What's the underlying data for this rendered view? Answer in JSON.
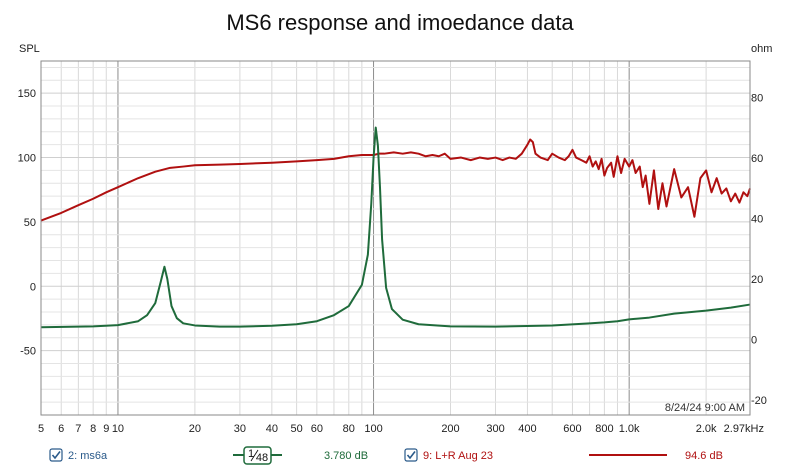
{
  "chart_data": {
    "type": "line",
    "title": "MS6 response and imoedance data",
    "left_axis_label": "SPL",
    "right_axis_label": "ohm",
    "timestamp": "8/24/24 9:00 AM",
    "x_scale": "log",
    "xlim": [
      5,
      2970
    ],
    "ylim_left": [
      -100,
      175
    ],
    "ylim_right": [
      -25,
      92
    ],
    "x_ticks": [
      {
        "v": 5,
        "label": "5"
      },
      {
        "v": 6,
        "label": "6"
      },
      {
        "v": 7,
        "label": "7"
      },
      {
        "v": 8,
        "label": "8"
      },
      {
        "v": 9,
        "label": "9"
      },
      {
        "v": 10,
        "label": "10"
      },
      {
        "v": 20,
        "label": "20"
      },
      {
        "v": 30,
        "label": "30"
      },
      {
        "v": 40,
        "label": "40"
      },
      {
        "v": 50,
        "label": "50"
      },
      {
        "v": 60,
        "label": "60"
      },
      {
        "v": 80,
        "label": "80"
      },
      {
        "v": 100,
        "label": "100"
      },
      {
        "v": 200,
        "label": "200"
      },
      {
        "v": 300,
        "label": "300"
      },
      {
        "v": 400,
        "label": "400"
      },
      {
        "v": 600,
        "label": "600"
      },
      {
        "v": 800,
        "label": "800"
      },
      {
        "v": 1000,
        "label": "1.0k"
      },
      {
        "v": 2000,
        "label": "2.0k"
      },
      {
        "v": 2970,
        "label": "2.97kHz"
      }
    ],
    "y_left_ticks": [
      150,
      100,
      50,
      0,
      -50
    ],
    "y_right_ticks": [
      80,
      60,
      40,
      20,
      0,
      -20
    ],
    "grid": true,
    "series": [
      {
        "name": "9: L+R Aug 23",
        "axis": "left",
        "color": "#b01010",
        "x": [
          5,
          6,
          7,
          8,
          9,
          10,
          12,
          14,
          16,
          18,
          20,
          25,
          30,
          40,
          50,
          60,
          70,
          80,
          90,
          100,
          105,
          110,
          120,
          130,
          140,
          150,
          160,
          170,
          180,
          190,
          200,
          220,
          240,
          260,
          280,
          300,
          320,
          340,
          360,
          380,
          400,
          410,
          420,
          430,
          450,
          480,
          500,
          530,
          560,
          580,
          600,
          620,
          650,
          680,
          700,
          720,
          740,
          760,
          780,
          800,
          820,
          850,
          870,
          900,
          930,
          960,
          1000,
          1030,
          1060,
          1100,
          1130,
          1160,
          1200,
          1250,
          1300,
          1350,
          1400,
          1500,
          1600,
          1700,
          1800,
          1900,
          2000,
          2100,
          2200,
          2300,
          2400,
          2500,
          2600,
          2700,
          2800,
          2900,
          2970
        ],
        "values": [
          51,
          57,
          63,
          68,
          73,
          77,
          84,
          89,
          92,
          93,
          94,
          94.5,
          95,
          96,
          97,
          98,
          99,
          101,
          102,
          102,
          103,
          103,
          104,
          103,
          104,
          103,
          101,
          102,
          101,
          103,
          99,
          100,
          98,
          100,
          99,
          100,
          98,
          100,
          99,
          103,
          110,
          114,
          112,
          103,
          100,
          98,
          103,
          100,
          98,
          101,
          106,
          100,
          98,
          96,
          101,
          93,
          97,
          91,
          99,
          86,
          92,
          96,
          85,
          101,
          88,
          99,
          93,
          98,
          88,
          93,
          77,
          86,
          64,
          90,
          60,
          80,
          62,
          91,
          69,
          77,
          54,
          84,
          90,
          73,
          84,
          72,
          76,
          66,
          72,
          65,
          73,
          70,
          76
        ]
      },
      {
        "name": "2: ms6a",
        "axis": "right",
        "color": "#1f6b3b",
        "x": [
          5,
          8,
          10,
          12,
          13,
          14,
          14.7,
          15.2,
          15.6,
          16.2,
          17,
          18,
          20,
          25,
          30,
          40,
          50,
          60,
          70,
          80,
          90,
          95,
          98,
          100,
          102,
          104,
          106,
          108,
          112,
          118,
          130,
          150,
          200,
          300,
          500,
          700,
          800,
          900,
          1000,
          1200,
          1500,
          2000,
          2500,
          2970
        ],
        "values": [
          4,
          4.3,
          4.7,
          6,
          8,
          12,
          19,
          24,
          20,
          11,
          7,
          5.3,
          4.6,
          4.2,
          4.2,
          4.5,
          5,
          6,
          8,
          11,
          18,
          28,
          45,
          60,
          70,
          64,
          50,
          33,
          17,
          10,
          6.5,
          5,
          4.3,
          4.2,
          4.6,
          5.3,
          5.6,
          6,
          6.6,
          7.2,
          8.5,
          9.5,
          10.5,
          11.5
        ]
      }
    ],
    "legend": [
      {
        "marker": "checkbox",
        "label": "2: ms6a",
        "color": "#2a5a8a"
      },
      {
        "marker": "line",
        "line_color": "#1f6b3b",
        "smoothing_num": "1",
        "smoothing_den": "48",
        "value": "3.780 dB",
        "value_color": "#1f6b3b"
      },
      {
        "marker": "checkbox",
        "label": "9: L+R Aug 23",
        "color": "#b01010"
      },
      {
        "marker": "line",
        "line_color": "#b01010",
        "value": "94.6 dB",
        "value_color": "#b01010"
      }
    ]
  }
}
